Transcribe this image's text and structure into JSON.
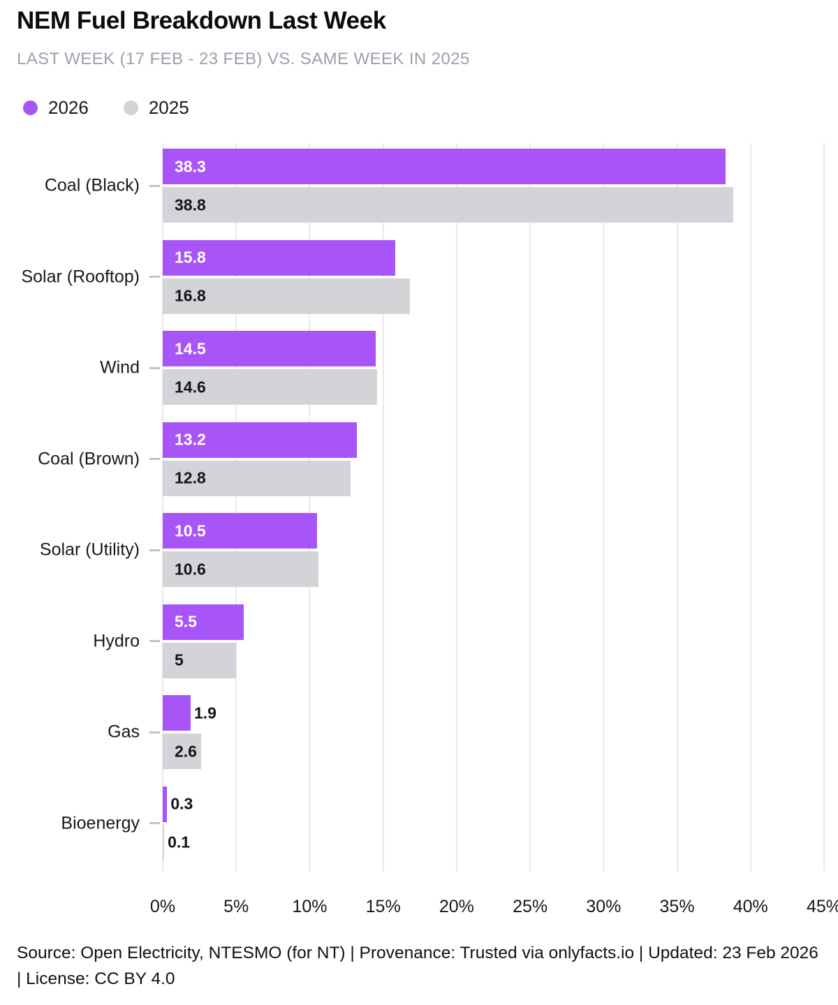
{
  "header": {
    "title": "NEM Fuel Breakdown Last Week",
    "subtitle": "LAST WEEK (17 FEB - 23 FEB) VS. SAME WEEK IN 2025"
  },
  "legend": [
    {
      "label": "2026",
      "color": "#a855f7"
    },
    {
      "label": "2025",
      "color": "#d4d4d8"
    }
  ],
  "colors": {
    "bar_2026": "#a855f7",
    "bar_2025": "#d4d4d8",
    "gridline": "#eaeaee",
    "value_label_on_2026": "#ffffff",
    "value_label_on_2025": "#131418",
    "value_label_outside": "#131418",
    "subtitle_text": "#9aa1ab",
    "category_tick": "#c2c2c8"
  },
  "chart_data": {
    "type": "bar",
    "orientation": "horizontal",
    "title": "NEM Fuel Breakdown Last Week",
    "subtitle": "LAST WEEK (17 FEB - 23 FEB) VS. SAME WEEK IN 2025",
    "categories": [
      "Coal (Black)",
      "Solar (Rooftop)",
      "Wind",
      "Coal (Brown)",
      "Solar (Utility)",
      "Hydro",
      "Gas",
      "Bioenergy"
    ],
    "series": [
      {
        "name": "2026",
        "color": "#a855f7",
        "values": [
          38.3,
          15.8,
          14.5,
          13.2,
          10.5,
          5.5,
          1.9,
          0.3
        ],
        "labels": [
          "38.3",
          "15.8",
          "14.5",
          "13.2",
          "10.5",
          "5.5",
          "1.9",
          "0.3"
        ]
      },
      {
        "name": "2025",
        "color": "#d4d4d8",
        "values": [
          38.8,
          16.8,
          14.6,
          12.8,
          10.6,
          5,
          2.6,
          0.1
        ],
        "labels": [
          "38.8",
          "16.8",
          "14.6",
          "12.8",
          "10.6",
          "5",
          "2.6",
          "0.1"
        ]
      }
    ],
    "xlabel": "",
    "ylabel": "",
    "xlim": [
      0,
      45
    ],
    "x_ticks": [
      "0%",
      "5%",
      "10%",
      "15%",
      "20%",
      "25%",
      "30%",
      "35%",
      "40%",
      "45%"
    ],
    "grid": true,
    "legend_position": "top-left",
    "value_labels_shown": true
  },
  "footer": {
    "text": "Source: Open Electricity, NTESMO (for NT) | Provenance: Trusted via onlyfacts.io | Updated: 23 Feb 2026 | License: CC BY 4.0"
  }
}
